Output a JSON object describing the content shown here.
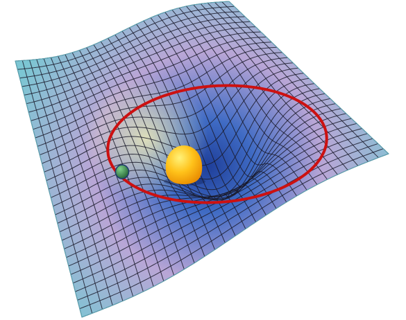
{
  "diagram": {
    "subject": "spacetime-curvature",
    "colors": {
      "background": "#ffffff",
      "sheet_edge": "#7cc6d3",
      "sheet_mid": "#b9a6d6",
      "well_center": "#1f3f9a",
      "warm_glow": "#f3f0b8",
      "grid_lines": "#1a1a2a",
      "orbit": "#cc1111",
      "sun_light": "#fff27a",
      "sun_mid": "#ffc21a",
      "sun_dark": "#e88a00",
      "planet_light": "#7fd08a",
      "planet_dark": "#1c5a2e",
      "planet_outline": "#1d3b6e"
    },
    "grid": {
      "divisions": 30
    },
    "elements": [
      {
        "name": "curved-spacetime-sheet",
        "icon": "grid-surface"
      },
      {
        "name": "orbit-path",
        "icon": "ellipse"
      },
      {
        "name": "sun",
        "icon": "sphere"
      },
      {
        "name": "planet",
        "icon": "sphere"
      }
    ]
  }
}
